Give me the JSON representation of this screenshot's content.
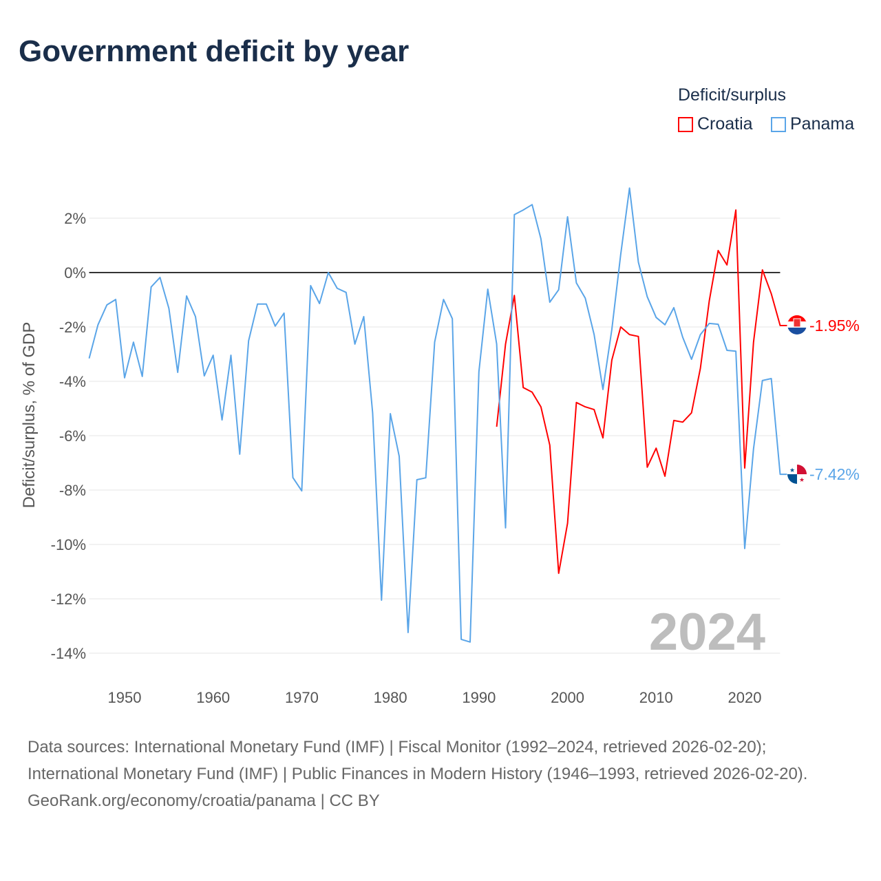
{
  "title": "Government deficit by year",
  "legend": {
    "title": "Deficit/surplus",
    "items": [
      {
        "name": "Croatia",
        "color": "#ff0000"
      },
      {
        "name": "Panama",
        "color": "#5aa5e8"
      }
    ]
  },
  "year_label": "2024",
  "footer": {
    "sources": "Data sources: International Monetary Fund (IMF) | Fiscal Monitor (1992–2024, retrieved 2026-02-20); International Monetary Fund (IMF) | Public Finances in Modern History (1946–1993, retrieved 2026-02-20).",
    "credit": "GeoRank.org/economy/croatia/panama | CC BY"
  },
  "chart_data": {
    "type": "line",
    "title": "Government deficit by year",
    "xlabel": "",
    "ylabel": "Deficit/surplus, % of GDP",
    "xlim": [
      1946,
      2024
    ],
    "ylim": [
      -15.5,
      3.5
    ],
    "xticks": [
      1950,
      1960,
      1970,
      1980,
      1990,
      2000,
      2010,
      2020
    ],
    "yticks": [
      2,
      0,
      -2,
      -4,
      -6,
      -8,
      -10,
      -12,
      -14
    ],
    "ytick_labels": [
      "2%",
      "0%",
      "-2%",
      "-4%",
      "-6%",
      "-8%",
      "-10%",
      "-12%",
      "-14%"
    ],
    "grid": true,
    "legend_position": "top-right",
    "series": [
      {
        "name": "Croatia",
        "color": "#ff0000",
        "end_label": "-1.95%",
        "start_year": 1992,
        "values": [
          -5.67,
          -2.63,
          -0.84,
          -4.23,
          -4.4,
          -4.94,
          -6.35,
          -11.06,
          -9.22,
          -4.78,
          -4.94,
          -5.04,
          -6.08,
          -3.22,
          -2.0,
          -2.28,
          -2.35,
          -7.16,
          -6.46,
          -7.49,
          -5.44,
          -5.5,
          -5.16,
          -3.52,
          -1.04,
          0.81,
          0.28,
          2.3,
          -7.19,
          -2.56,
          0.1,
          -0.78,
          -1.95
        ]
      },
      {
        "name": "Panama",
        "color": "#5aa5e8",
        "end_label": "-7.42%",
        "start_year": 1946,
        "values": [
          -3.16,
          -1.92,
          -1.19,
          -0.99,
          -3.87,
          -2.56,
          -3.82,
          -0.53,
          -0.18,
          -1.32,
          -3.67,
          -0.86,
          -1.62,
          -3.8,
          -3.04,
          -5.42,
          -3.04,
          -6.68,
          -2.51,
          -1.16,
          -1.16,
          -1.97,
          -1.49,
          -7.54,
          -8.03,
          -0.48,
          -1.14,
          0.0,
          -0.58,
          -0.73,
          -2.63,
          -1.62,
          -5.16,
          -12.05,
          -5.19,
          -6.76,
          -13.24,
          -7.62,
          -7.55,
          -2.56,
          -0.99,
          -1.7,
          -13.49,
          -13.59,
          -3.65,
          -0.61,
          -2.63,
          -9.39,
          2.13,
          2.3,
          2.5,
          1.24,
          -1.09,
          -0.63,
          2.05,
          -0.38,
          -0.94,
          -2.28,
          -4.3,
          -2.1,
          0.66,
          3.11,
          0.38,
          -0.89,
          -1.65,
          -1.92,
          -1.29,
          -2.38,
          -3.19,
          -2.28,
          -1.87,
          -1.9,
          -2.86,
          -2.89,
          -10.15,
          -6.48,
          -3.97,
          -3.9,
          -7.42
        ]
      }
    ]
  }
}
